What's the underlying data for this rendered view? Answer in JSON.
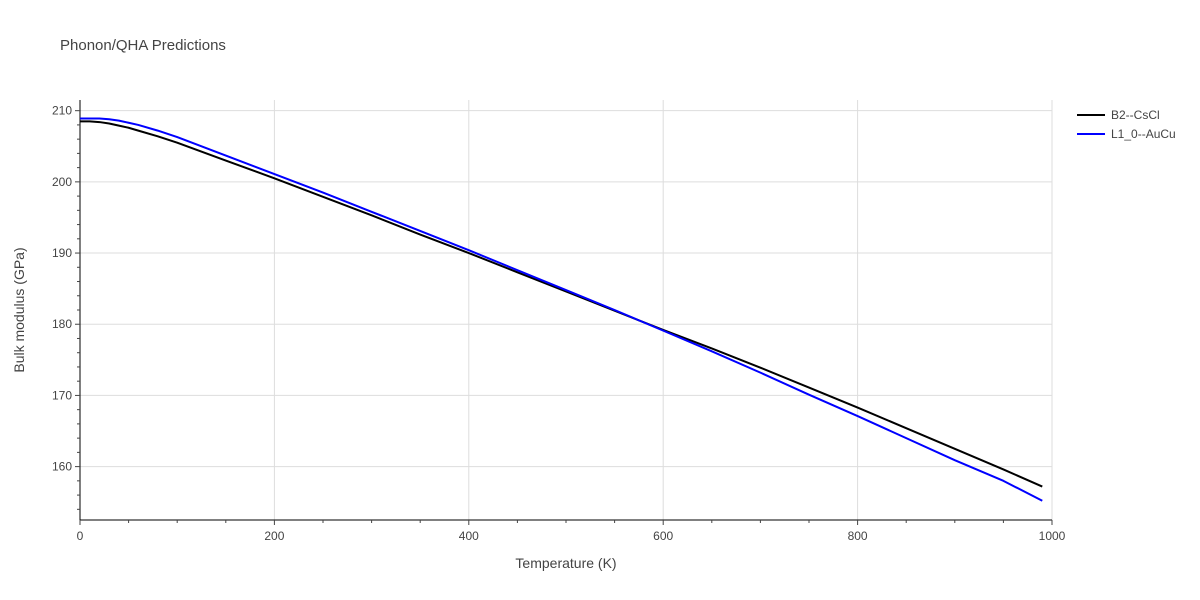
{
  "chart_data": {
    "type": "line",
    "title": "Phonon/QHA Predictions",
    "xlabel": "Temperature (K)",
    "ylabel": "Bulk modulus (GPa)",
    "xlim": [
      0,
      1000
    ],
    "ylim": [
      152.5,
      211.5
    ],
    "xticks": [
      0,
      200,
      400,
      600,
      800,
      1000
    ],
    "yticks": [
      160,
      170,
      180,
      190,
      200,
      210
    ],
    "grid": true,
    "legend_position": "top-right",
    "series": [
      {
        "name": "B2--CsCl",
        "color": "#000000",
        "x": [
          0,
          10,
          20,
          30,
          40,
          50,
          60,
          80,
          100,
          150,
          200,
          250,
          300,
          350,
          400,
          450,
          500,
          550,
          600,
          650,
          700,
          750,
          800,
          850,
          900,
          950,
          990
        ],
        "y": [
          208.5,
          208.5,
          208.4,
          208.2,
          207.9,
          207.6,
          207.2,
          206.4,
          205.5,
          203.0,
          200.5,
          197.9,
          195.3,
          192.6,
          190.0,
          187.3,
          184.6,
          181.9,
          179.2,
          176.6,
          173.9,
          171.1,
          168.3,
          165.4,
          162.5,
          159.6,
          157.2
        ]
      },
      {
        "name": "L1_0--AuCu",
        "color": "#0000ff",
        "x": [
          0,
          10,
          20,
          30,
          40,
          50,
          60,
          80,
          100,
          150,
          200,
          250,
          300,
          350,
          400,
          450,
          500,
          550,
          600,
          650,
          700,
          750,
          800,
          850,
          900,
          950,
          990
        ],
        "y": [
          208.9,
          208.9,
          208.9,
          208.8,
          208.6,
          208.3,
          208.0,
          207.2,
          206.3,
          203.7,
          201.1,
          198.5,
          195.8,
          193.1,
          190.4,
          187.6,
          184.8,
          182.0,
          179.1,
          176.2,
          173.2,
          170.1,
          167.1,
          164.0,
          160.9,
          158.0,
          155.2
        ]
      }
    ]
  }
}
